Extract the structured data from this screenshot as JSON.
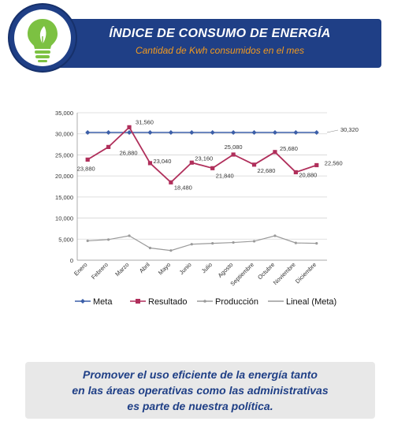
{
  "header": {
    "title": "ÍNDICE DE CONSUMO DE ENERGÍA",
    "subtitle": "Cantidad de Kwh consumidos en el mes"
  },
  "colors": {
    "banner": "#1f3f86",
    "subtitle": "#f39a1e",
    "meta": "#3b5ea8",
    "resultado": "#b02f5b",
    "produccion": "#9a9a9a",
    "lineal": "#9a9a9a",
    "logo_green": "#7cc142"
  },
  "chart_data": {
    "type": "line",
    "categories": [
      "Enero",
      "Febrero",
      "Marzo",
      "Abril",
      "Mayo",
      "Junio",
      "Julio",
      "Agosto",
      "Septiembre",
      "Octubre",
      "Noviembre",
      "Diciembre"
    ],
    "ylim": [
      0,
      35000
    ],
    "yticks": [
      "0",
      "5,000",
      "10,000",
      "15,000",
      "20,000",
      "25,000",
      "30,000",
      "35,000"
    ],
    "legend_position": "bottom",
    "series": [
      {
        "name": "Meta",
        "values": [
          30320,
          30320,
          30320,
          30320,
          30320,
          30320,
          30320,
          30320,
          30320,
          30320,
          30320,
          30320
        ]
      },
      {
        "name": "Resultado",
        "values": [
          23880,
          26880,
          31560,
          23040,
          18480,
          23160,
          21840,
          25080,
          22680,
          25680,
          20880,
          22560
        ],
        "labels": [
          "23,880",
          "26,880",
          "31,560",
          "23,040",
          "18,480",
          "23,160",
          "21,840",
          "25,080",
          "22,680",
          "25,680",
          "20,880",
          "22,560"
        ]
      },
      {
        "name": "Producción",
        "values": [
          4600,
          4900,
          5800,
          2900,
          2300,
          3800,
          4000,
          4200,
          4500,
          5800,
          4100,
          4000
        ]
      },
      {
        "name": "Lineal  (Meta)",
        "values": [
          30320,
          30320,
          30320,
          30320,
          30320,
          30320,
          30320,
          30320,
          30320,
          30320,
          30320,
          30320
        ]
      }
    ],
    "annotation": "30,320"
  },
  "footer": {
    "line1": "Promover el uso eficiente de la energía tanto",
    "line2": "en las áreas operativas como las administrativas",
    "line3": "es parte de nuestra política."
  }
}
